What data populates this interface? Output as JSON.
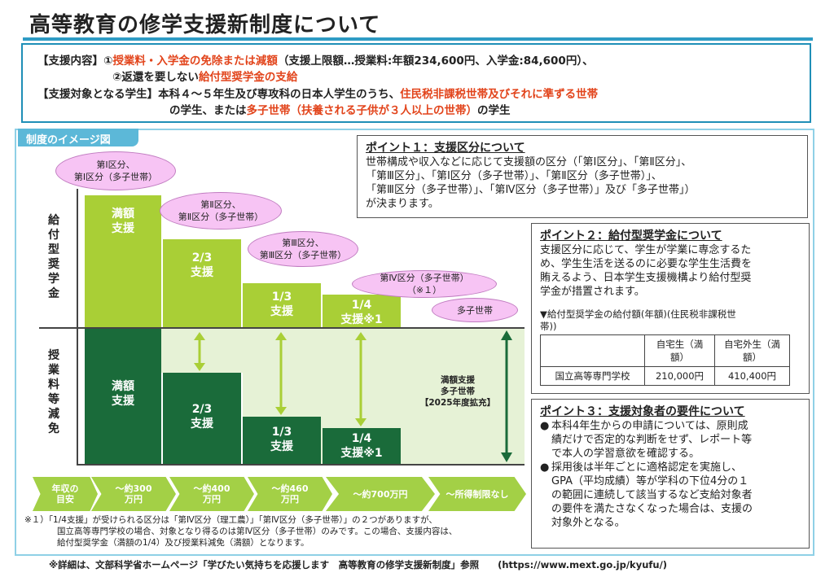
{
  "title": "高等教育の修学支援新制度について",
  "summary": {
    "l1_a": "【支援内容】①",
    "l1_b": "授業料・入学金の免除または減額",
    "l1_c": "（支援上限額…授業料:年額234,600円、入学金:84,600円）、",
    "l2_a": "②返還を要しない",
    "l2_b": "給付型奨学金の支給",
    "l3_a": "【支援対象となる学生】本科４～５年生及び専攻科の日本人学生のうち、",
    "l3_b": "住民税非課税世帯及びそれに準ずる世帯",
    "l4_a": "の学生、または",
    "l4_b": "多子世帯（扶養される子供が３人以上の世帯）",
    "l4_c": "の学生"
  },
  "diagram": {
    "tab": "制度のイメージ図",
    "left_top_label": [
      "給",
      "付",
      "型",
      "奨",
      "学",
      "金"
    ],
    "left_bottom_label": [
      "授",
      "業",
      "料",
      "等",
      "減",
      "免"
    ],
    "bars_top": [
      "満額\n支援",
      "2/3\n支援",
      "1/3\n支援",
      "1/4\n支援※1"
    ],
    "bars_bottom": [
      "満額\n支援",
      "2/3\n支援",
      "1/3\n支援",
      "1/4\n支援※1"
    ],
    "bubbles": [
      "第Ⅰ区分、\n第Ⅰ区分（多子世帯）",
      "第Ⅱ区分、\n第Ⅱ区分（多子世帯）",
      "第Ⅲ区分、\n第Ⅲ区分（多子世帯）",
      "第Ⅳ区分（多子世帯）\n（※１）",
      "多子世帯"
    ],
    "expansion_label": "満額支援\n多子世帯\n【2025年度拡充】",
    "income": [
      "年収の\n目安",
      "～約300\n万円",
      "～約400\n万円",
      "～約460\n万円",
      "～約700万円",
      "～所得制限なし"
    ],
    "note": [
      "※１）「1/4支援」が受けられる区分は「第Ⅳ区分（理工農）」「第Ⅳ区分（多子世帯）」の２つがありますが、",
      "国立高等専門学校の場合、対象となり得るのは第Ⅳ区分（多子世帯）のみです。この場合、支援内容は、",
      "給付型奨学金（満額の1/4）及び授業料減免（満額）となります。"
    ]
  },
  "point1": {
    "title": "ポイント１：支援区分について",
    "lines": [
      "世帯構成や収入などに応じて支援額の区分（「第Ⅰ区分」、「第Ⅱ区分」、",
      "「第Ⅲ区分」、「第Ⅰ区分（多子世帯）」、「第Ⅱ区分（多子世帯）」、",
      "「第Ⅲ区分（多子世帯）」、「第Ⅳ区分（多子世帯）」及び「多子世帯」）",
      "が決まります。"
    ]
  },
  "point2": {
    "title": "ポイント２：給付型奨学金について",
    "lines": [
      "支援区分に応じて、学生が学業に専念するた",
      "め、学生生活を送るのに必要な学生生活費を",
      "賄えるよう、日本学生支援機構より給付型奨",
      "学金が措置されます。"
    ],
    "table_caption_1": "▼給付型奨学金の給付額(年額)(住民税非課税世",
    "table_caption_2": "帯))",
    "table": {
      "headers": [
        "",
        "自宅生（満額）",
        "自宅外生（満額）"
      ],
      "rows": [
        [
          "国立高等専門学校",
          "210,000円",
          "410,400円"
        ]
      ]
    }
  },
  "point3": {
    "title": "ポイント３：支援対象者の要件について",
    "b1": [
      "本科4年生からの申請については、原則成",
      "績だけで否定的な判断をせず、レポート等",
      "で本人の学習意欲を確認する。"
    ],
    "b2": [
      "採用後は半年ごとに適格認定を実施し、",
      "GPA（平均成績）等が学科の下位4分の１",
      "の範囲に連続して該当するなど支給対象者",
      "の要件を満たさなくなった場合は、支援の",
      "対象外となる。"
    ]
  },
  "footer": "※詳細は、文部科学省ホームページ「学びたい気持ちを応援します　高等教育の修学支援新制度」参照　　(https://www.mext.go.jp/kyufu/)",
  "colors": {
    "accent": "#2e9bc4",
    "light_green": "#a9cf36",
    "dark_green": "#1a6b3a",
    "highlight": "#e2441b",
    "bubble": "#f7c4f4"
  }
}
